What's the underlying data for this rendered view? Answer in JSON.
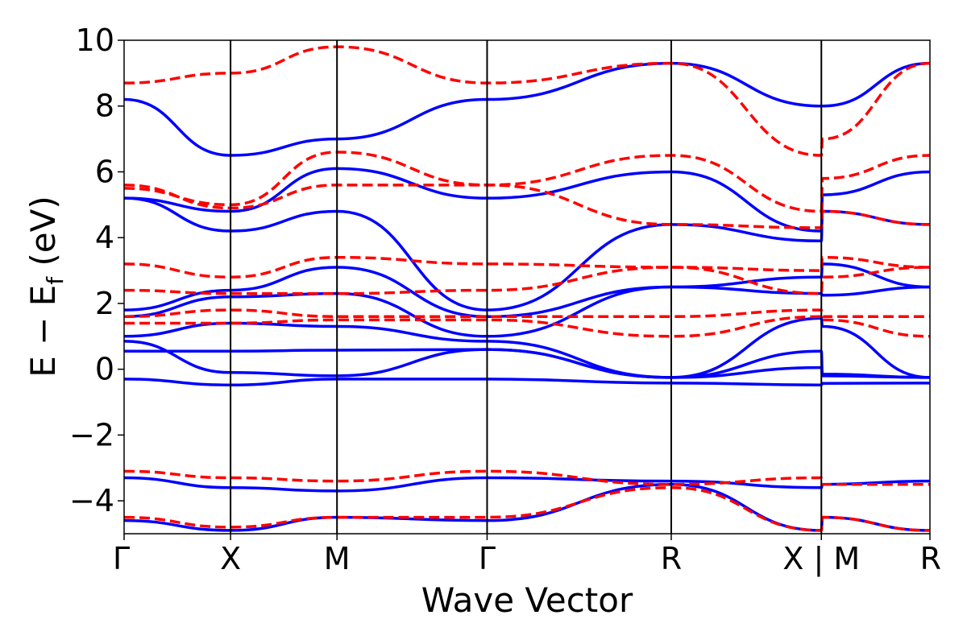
{
  "chart_data": {
    "type": "line",
    "title": "",
    "xlabel": "Wave Vector",
    "ylabel_main": "E − E",
    "ylabel_sub": "f",
    "ylabel_unit": " (eV)",
    "ylim": [
      -5,
      10
    ],
    "y_ticks": [
      -4,
      -2,
      0,
      2,
      4,
      6,
      8,
      10
    ],
    "y_tick_labels": [
      "−4",
      "−2",
      "0",
      "2",
      "4",
      "6",
      "8",
      "10"
    ],
    "x_ticks": [
      0,
      1,
      2,
      3.41,
      5.14,
      6.55,
      7.57
    ],
    "x_tick_labels": [
      "Γ",
      "X",
      "M",
      "Γ",
      "R",
      "X | M",
      "R"
    ],
    "grid": false,
    "colors": {
      "series_a": "#0000ff",
      "series_b": "#ff0000"
    },
    "series": [
      {
        "style": "solid",
        "color": "#0000ff",
        "x": [
          0,
          1,
          2,
          3.41,
          5.14,
          6.55,
          6.56,
          7.57
        ],
        "y": [
          -0.3,
          -0.48,
          -0.3,
          -0.3,
          -0.42,
          -0.48,
          -0.43,
          -0.42
        ]
      },
      {
        "style": "solid",
        "color": "#0000ff",
        "x": [
          0,
          1,
          2,
          3.41,
          5.14,
          6.55,
          6.56,
          7.57
        ],
        "y": [
          0.55,
          0.55,
          0.58,
          0.6,
          -0.25,
          0.05,
          -0.2,
          -0.25
        ]
      },
      {
        "style": "solid",
        "color": "#0000ff",
        "x": [
          0,
          1,
          2,
          3.41,
          5.14,
          6.55,
          6.56,
          7.57
        ],
        "y": [
          0.85,
          -0.1,
          -0.2,
          0.6,
          -0.25,
          0.55,
          -0.15,
          -0.25
        ]
      },
      {
        "style": "solid",
        "color": "#0000ff",
        "x": [
          0,
          1,
          2,
          3.41,
          5.14,
          6.55,
          6.56,
          7.57
        ],
        "y": [
          1.0,
          1.4,
          1.3,
          0.85,
          -0.25,
          1.55,
          1.3,
          -0.25
        ]
      },
      {
        "style": "solid",
        "color": "#0000ff",
        "x": [
          0,
          1,
          2,
          3.41,
          5.14,
          6.55,
          6.56,
          7.57
        ],
        "y": [
          1.6,
          2.2,
          2.3,
          1.0,
          2.5,
          2.3,
          2.25,
          2.5
        ]
      },
      {
        "style": "solid",
        "color": "#0000ff",
        "x": [
          0,
          1,
          2,
          3.41,
          5.14,
          6.55,
          6.56,
          7.57
        ],
        "y": [
          1.8,
          2.4,
          3.1,
          1.6,
          2.5,
          2.8,
          3.2,
          2.5
        ]
      },
      {
        "style": "solid",
        "color": "#0000ff",
        "x": [
          0,
          1,
          2,
          3.41,
          5.14,
          6.55,
          6.56,
          7.57
        ],
        "y": [
          5.2,
          4.2,
          4.8,
          1.8,
          4.4,
          3.9,
          4.8,
          4.4
        ]
      },
      {
        "style": "solid",
        "color": "#0000ff",
        "x": [
          0,
          1,
          2,
          3.41,
          5.14,
          6.55,
          6.56,
          7.57
        ],
        "y": [
          5.2,
          4.8,
          6.1,
          5.2,
          6.0,
          4.2,
          5.3,
          6.0
        ]
      },
      {
        "style": "solid",
        "color": "#0000ff",
        "x": [
          0,
          1,
          2,
          3.41,
          5.14,
          6.55,
          6.56,
          7.57
        ],
        "y": [
          8.2,
          6.5,
          7.0,
          8.2,
          9.3,
          8.0,
          8.0,
          9.3
        ]
      },
      {
        "style": "solid",
        "color": "#0000ff",
        "x": [
          0,
          1,
          2,
          3.41,
          5.14,
          6.55,
          6.56,
          7.57
        ],
        "y": [
          -3.3,
          -3.6,
          -3.7,
          -3.3,
          -3.4,
          -3.6,
          -3.5,
          -3.4
        ]
      },
      {
        "style": "solid",
        "color": "#0000ff",
        "x": [
          0,
          1,
          2,
          3.41,
          5.14,
          6.55,
          6.56,
          7.57
        ],
        "y": [
          -4.6,
          -4.9,
          -4.5,
          -4.6,
          -3.5,
          -4.9,
          -4.5,
          -4.9
        ]
      },
      {
        "style": "dashed",
        "color": "#ff0000",
        "x": [
          0,
          1,
          2,
          3.41,
          5.14,
          6.55,
          6.56,
          7.57
        ],
        "y": [
          1.4,
          1.4,
          1.5,
          1.5,
          1.0,
          1.6,
          1.5,
          1.0
        ]
      },
      {
        "style": "dashed",
        "color": "#ff0000",
        "x": [
          0,
          1,
          2,
          3.41,
          5.14,
          6.55,
          6.56,
          7.57
        ],
        "y": [
          1.6,
          1.8,
          1.6,
          1.6,
          1.6,
          1.8,
          1.6,
          1.6
        ]
      },
      {
        "style": "dashed",
        "color": "#ff0000",
        "x": [
          0,
          1,
          2,
          3.41,
          5.14,
          6.55,
          6.56,
          7.57
        ],
        "y": [
          2.4,
          2.3,
          2.3,
          2.4,
          3.1,
          2.3,
          2.8,
          3.1
        ]
      },
      {
        "style": "dashed",
        "color": "#ff0000",
        "x": [
          0,
          1,
          2,
          3.41,
          5.14,
          6.55,
          6.56,
          7.57
        ],
        "y": [
          3.2,
          2.8,
          3.4,
          3.2,
          3.1,
          3.0,
          3.4,
          3.1
        ]
      },
      {
        "style": "dashed",
        "color": "#ff0000",
        "x": [
          0,
          1,
          2,
          3.41,
          5.14,
          6.55,
          6.56,
          7.57
        ],
        "y": [
          5.6,
          4.9,
          5.6,
          5.6,
          6.5,
          4.8,
          5.8,
          6.5
        ]
      },
      {
        "style": "dashed",
        "color": "#ff0000",
        "x": [
          0,
          1,
          2,
          3.41,
          5.14,
          6.55,
          6.56,
          7.57
        ],
        "y": [
          5.5,
          5.0,
          6.6,
          5.6,
          4.4,
          4.3,
          4.8,
          4.4
        ]
      },
      {
        "style": "dashed",
        "color": "#ff0000",
        "x": [
          0,
          1,
          2,
          3.41,
          5.14,
          6.55,
          6.56,
          7.57
        ],
        "y": [
          8.7,
          9.0,
          9.8,
          8.7,
          9.3,
          6.5,
          7.0,
          9.3
        ]
      },
      {
        "style": "dashed",
        "color": "#ff0000",
        "x": [
          0,
          1,
          2,
          3.41,
          5.14,
          6.55,
          6.56,
          7.57
        ],
        "y": [
          -3.1,
          -3.3,
          -3.4,
          -3.1,
          -3.5,
          -3.3,
          -3.5,
          -3.5
        ]
      },
      {
        "style": "dashed",
        "color": "#ff0000",
        "x": [
          0,
          1,
          2,
          3.41,
          5.14,
          6.55,
          6.56,
          7.57
        ],
        "y": [
          -4.5,
          -4.8,
          -4.5,
          -4.5,
          -3.6,
          -4.9,
          -4.5,
          -4.9
        ]
      }
    ]
  }
}
